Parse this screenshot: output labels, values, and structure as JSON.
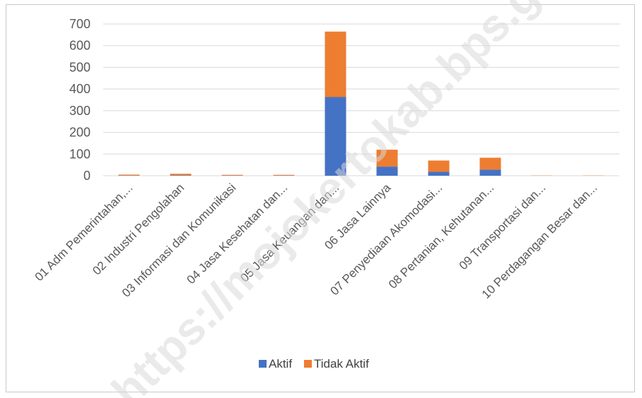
{
  "chart_data": {
    "type": "bar",
    "stacked": true,
    "categories": [
      "01  Adm Pemerintahan,...",
      "02  Industri Pengolahan",
      "03  Informasi dan Komunikasi",
      "04  Jasa Kesehatan dan...",
      "05  Jasa Keuangan dan...",
      "06  Jasa Lainnya",
      "07  Penyediaan Akomodasi...",
      "08  Pertanian, Kehutanan...",
      "09  Transportasi dan...",
      "10  Perdagangan Besar dan..."
    ],
    "series": [
      {
        "name": "Aktif",
        "color": "#4472c4",
        "values": [
          1,
          2,
          1,
          1,
          363,
          42,
          18,
          28,
          0,
          0
        ]
      },
      {
        "name": "Tidak Aktif",
        "color": "#ed7d31",
        "values": [
          4,
          7,
          3,
          3,
          302,
          78,
          52,
          55,
          1,
          1
        ]
      }
    ],
    "ylim": [
      0,
      700
    ],
    "yticks": [
      "0",
      "100",
      "200",
      "300",
      "400",
      "500",
      "600",
      "700"
    ],
    "grid": true,
    "legend_position": "bottom",
    "watermark": "https://mojokertokab.bps.go.id"
  }
}
